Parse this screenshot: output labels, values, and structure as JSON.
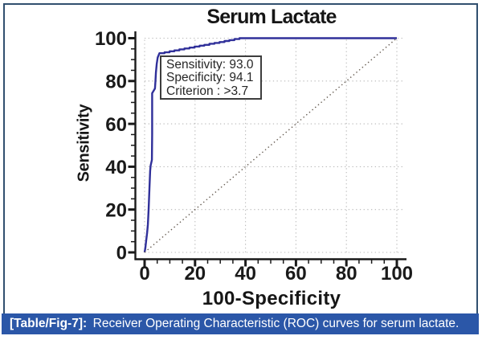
{
  "figure": {
    "caption": {
      "label": "[Table/Fig-7]:",
      "text": "Receiver Operating Characteristic (ROC) curves for serum lactate."
    },
    "colors": {
      "caption_bg": "#2b57a8",
      "frame_border": "#31506f",
      "curve": "#30309a",
      "diagonal": "#63594f",
      "grid": "#b8b8b8",
      "axis": "#1a1a1a"
    }
  },
  "chart_data": {
    "type": "line",
    "title": "Serum Lactate",
    "xlabel": "100-Specificity",
    "ylabel": "Sensitivity",
    "xlim": [
      0,
      100
    ],
    "ylim": [
      0,
      100
    ],
    "x_ticks": [
      0,
      20,
      40,
      60,
      80,
      100
    ],
    "y_ticks": [
      0,
      20,
      40,
      60,
      80,
      100
    ],
    "minor_tick_step": 5,
    "grid": "dotted",
    "legend_position": "none",
    "series": [
      {
        "name": "ROC curve (serum lactate)",
        "role": "roc-curve",
        "points": [
          [
            0,
            0
          ],
          [
            0.3,
            2
          ],
          [
            0.6,
            5.3
          ],
          [
            1.0,
            9
          ],
          [
            1.3,
            13.1
          ],
          [
            1.6,
            20
          ],
          [
            1.9,
            29.6
          ],
          [
            2.2,
            38
          ],
          [
            2.4,
            40.5
          ],
          [
            2.9,
            43.2
          ],
          [
            3.0,
            55
          ],
          [
            3.0,
            65.3
          ],
          [
            3.0,
            74.3
          ],
          [
            4.1,
            76.5
          ],
          [
            4.3,
            79.9
          ],
          [
            4.5,
            84
          ],
          [
            4.8,
            88
          ],
          [
            5.2,
            91
          ],
          [
            5.9,
            93
          ],
          [
            7.9,
            93.0
          ],
          [
            7.9,
            93.4
          ],
          [
            9.9,
            93.4
          ],
          [
            9.9,
            93.9
          ],
          [
            11.8,
            93.9
          ],
          [
            11.8,
            94.3
          ],
          [
            13.8,
            94.3
          ],
          [
            13.8,
            94.8
          ],
          [
            15.8,
            94.8
          ],
          [
            15.8,
            95.2
          ],
          [
            17.8,
            95.2
          ],
          [
            17.8,
            95.6
          ],
          [
            19.8,
            95.6
          ],
          [
            19.8,
            96.1
          ],
          [
            21.8,
            96.1
          ],
          [
            21.8,
            96.5
          ],
          [
            23.7,
            96.5
          ],
          [
            23.7,
            96.9
          ],
          [
            25.7,
            96.9
          ],
          [
            25.7,
            97.4
          ],
          [
            27.7,
            97.4
          ],
          [
            27.7,
            97.8
          ],
          [
            29.7,
            97.8
          ],
          [
            29.7,
            98.2
          ],
          [
            31.7,
            98.2
          ],
          [
            31.7,
            98.7
          ],
          [
            33.6,
            98.7
          ],
          [
            33.6,
            99.1
          ],
          [
            35.6,
            99.1
          ],
          [
            35.6,
            99.6
          ],
          [
            37.6,
            99.6
          ],
          [
            37.6,
            100.0
          ],
          [
            100,
            100
          ]
        ]
      },
      {
        "name": "reference diagonal",
        "role": "diagonal",
        "points": [
          [
            0,
            0
          ],
          [
            100,
            100
          ]
        ]
      }
    ],
    "annotation": {
      "lines": [
        "Sensitivity: 93.0",
        "Specificity: 94.1",
        "Criterion : >3.7"
      ]
    }
  }
}
